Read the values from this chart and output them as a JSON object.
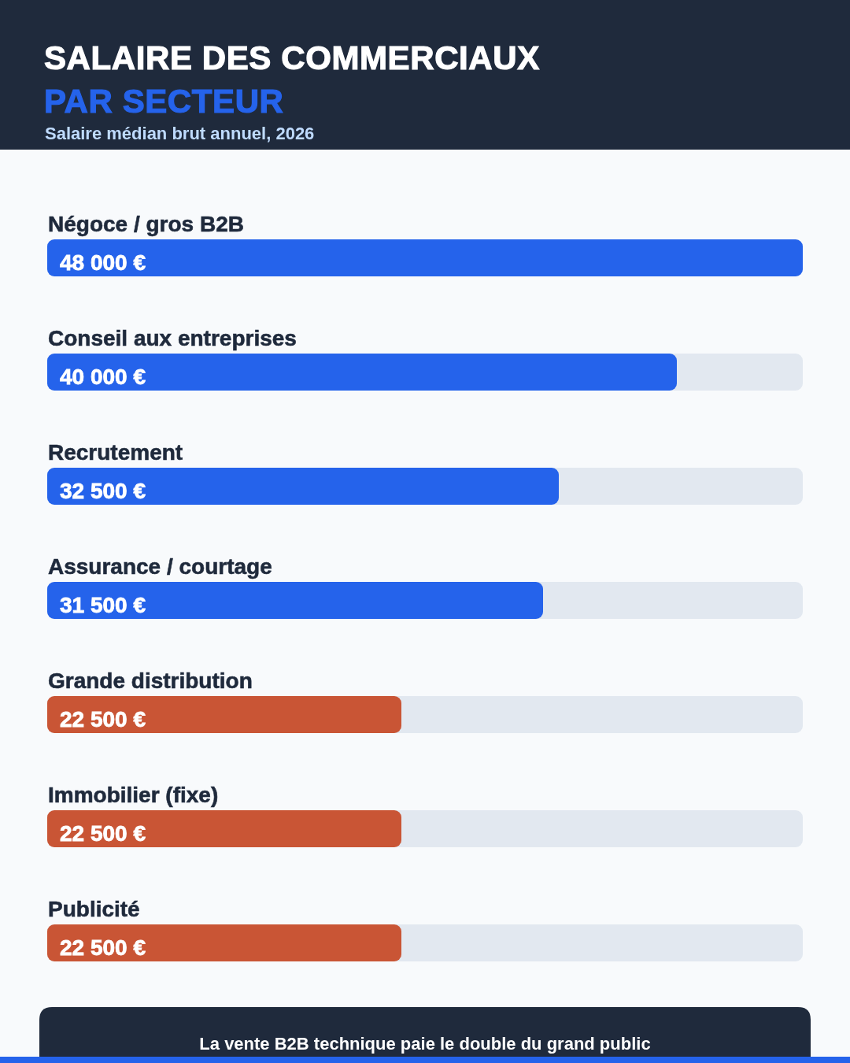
{
  "chart_data": {
    "type": "bar",
    "orientation": "horizontal",
    "title": "SALAIRE DES COMMERCIAUX\nPAR SECTEUR",
    "subtitle": "Salaire médian brut annuel, 2026",
    "categories": [
      "Négoce / gros B2B",
      "Conseil aux entreprises",
      "Recrutement",
      "Assurance / courtage",
      "Grande distribution",
      "Immobilier (fixe)",
      "Publicité"
    ],
    "values": [
      48000,
      40000,
      32500,
      31500,
      22500,
      22500,
      22500
    ],
    "colors": [
      "#2563eb",
      "#2563eb",
      "#2563eb",
      "#2563eb",
      "#c95535",
      "#c95535",
      "#c95535"
    ],
    "value_labels": [
      "48 000 €",
      "40 000 €",
      "32 500 €",
      "31 500 €",
      "22 500 €",
      "22 500 €",
      "22 500 €"
    ],
    "annotations": [
      "La vente B2B technique paie le double du grand public"
    ]
  }
}
